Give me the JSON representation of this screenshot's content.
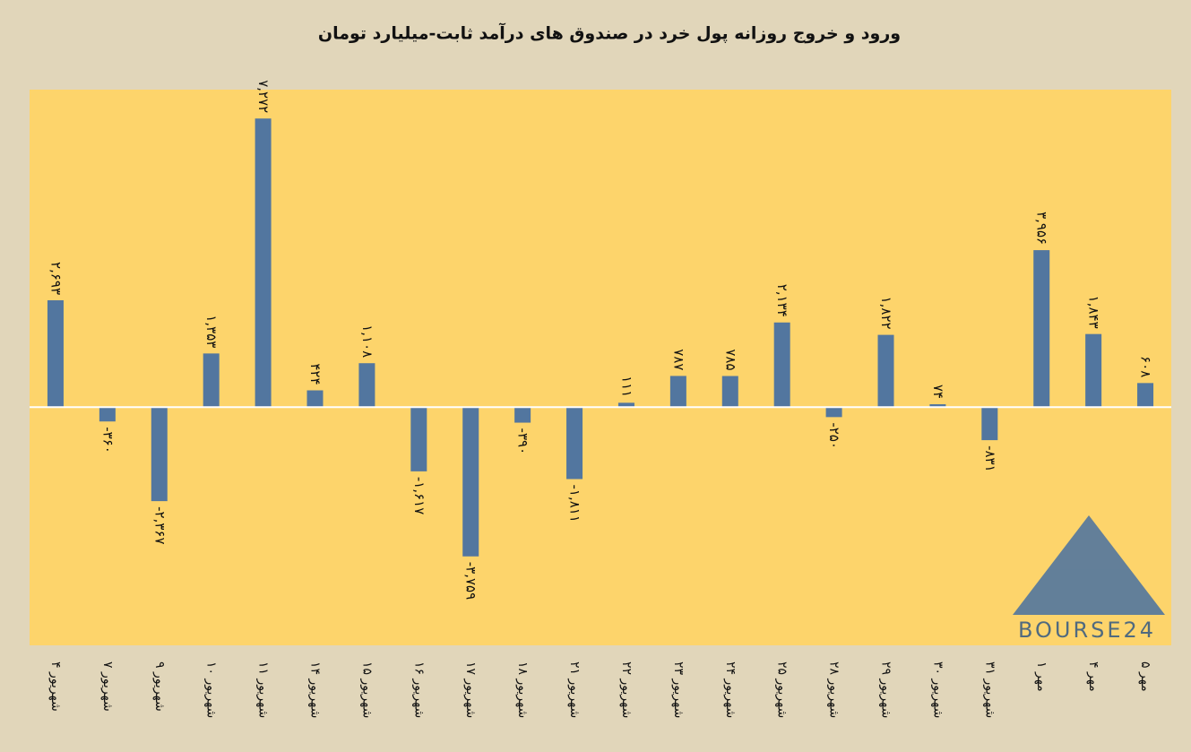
{
  "chart_data": {
    "type": "bar",
    "title": "ورود و خروج روزانه پول خرد در صندوق های درآمد ثابت-میلیارد تومان",
    "categories": [
      "۴ شهریور",
      "۷ شهریور",
      "۹ شهریور",
      "۱۰ شهریور",
      "۱۱ شهریور",
      "۱۴ شهریور",
      "۱۵ شهریور",
      "۱۶ شهریور",
      "۱۷ شهریور",
      "۱۸ شهریور",
      "۲۱ شهریور",
      "۲۲ شهریور",
      "۲۳ شهریور",
      "۲۴ شهریور",
      "۲۵ شهریور",
      "۲۸ شهریور",
      "۲۹ شهریور",
      "۳۰ شهریور",
      "۳۱ شهریور",
      "۱ مهر",
      "۴ مهر",
      "۵ مهر"
    ],
    "values": [
      2693,
      -360,
      -2367,
      1353,
      7272,
      424,
      1108,
      -1617,
      -3759,
      -390,
      -1811,
      111,
      787,
      785,
      2134,
      -250,
      1822,
      74,
      -831,
      3956,
      1843,
      608
    ],
    "value_labels": [
      "۲,۶۹۳",
      "-۳۶۰",
      "-۲,۳۶۷",
      "۱,۳۵۳",
      "۷,۲۷۲",
      "۴۲۴",
      "۱,۱۰۸",
      "-۱,۶۱۷",
      "-۳,۷۵۹",
      "-۳۹۰",
      "-۱,۸۱۱",
      "۱۱۱",
      "۷۸۷",
      "۷۸۵",
      "۲,۱۳۴",
      "-۲۵۰",
      "۱,۸۲۲",
      "۷۴",
      "-۸۳۱",
      "۳,۹۵۶",
      "۱,۸۴۳",
      "۶۰۸"
    ],
    "color": "#52769f",
    "ylim": [
      -6000,
      8000
    ],
    "watermark": "BOURSE24"
  }
}
